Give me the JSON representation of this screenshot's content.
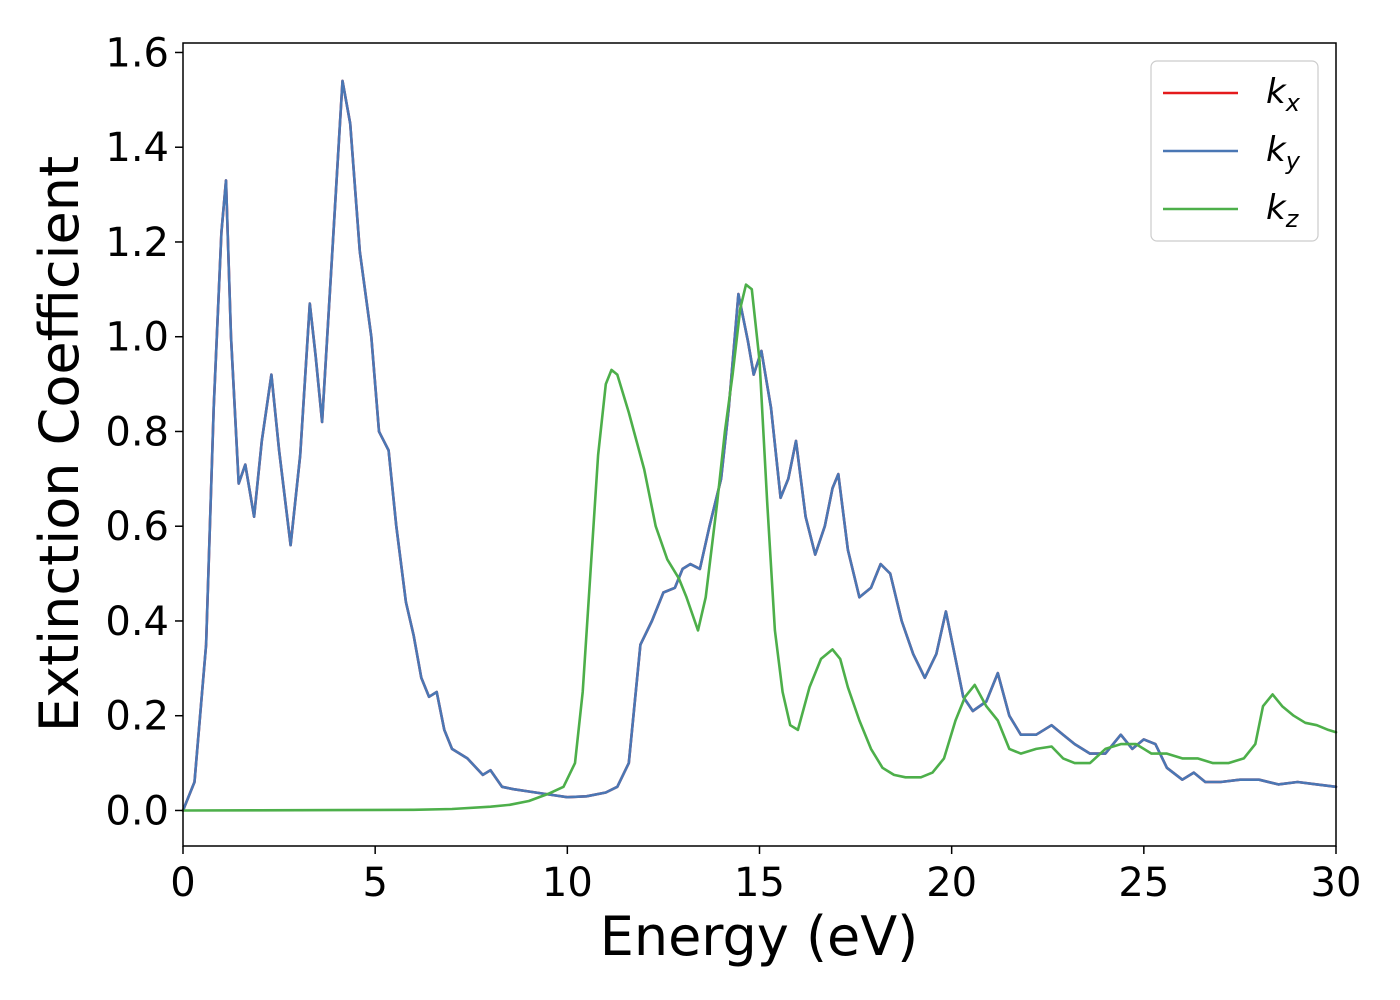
{
  "chart_data": {
    "type": "line",
    "title": "",
    "xlabel": "Energy (eV)",
    "ylabel": "Extinction Coefficient",
    "xlim": [
      0,
      30
    ],
    "ylim": [
      -0.075,
      1.62
    ],
    "xticks": [
      0,
      5,
      10,
      15,
      20,
      25,
      30
    ],
    "yticks": [
      0.0,
      0.2,
      0.4,
      0.6,
      0.8,
      1.0,
      1.2,
      1.4,
      1.6
    ],
    "xtick_labels": [
      "0",
      "5",
      "10",
      "15",
      "20",
      "25",
      "30"
    ],
    "ytick_labels": [
      "0.0",
      "0.2",
      "0.4",
      "0.6",
      "0.8",
      "1.0",
      "1.2",
      "1.4",
      "1.6"
    ],
    "grid": false,
    "legend_position": "top-right",
    "series": [
      {
        "name": "k",
        "subscript": "x",
        "color": "#e41a1c",
        "x": [
          0,
          0.3,
          0.6,
          0.8,
          1.0,
          1.12,
          1.25,
          1.45,
          1.62,
          1.85,
          2.05,
          2.3,
          2.5,
          2.8,
          3.05,
          3.3,
          3.45,
          3.62,
          3.9,
          4.15,
          4.35,
          4.6,
          4.9,
          5.1,
          5.35,
          5.55,
          5.8,
          6.0,
          6.2,
          6.4,
          6.6,
          6.8,
          7.0,
          7.4,
          7.8,
          8.0,
          8.3,
          8.6,
          9.0,
          9.5,
          10.0,
          10.5,
          11.0,
          11.3,
          11.6,
          11.9,
          12.2,
          12.5,
          12.8,
          13.0,
          13.2,
          13.45,
          13.7,
          14.0,
          14.2,
          14.45,
          14.7,
          14.85,
          15.05,
          15.3,
          15.55,
          15.75,
          15.95,
          16.2,
          16.45,
          16.7,
          16.9,
          17.05,
          17.3,
          17.6,
          17.9,
          18.15,
          18.4,
          18.7,
          19.0,
          19.3,
          19.6,
          19.85,
          20.05,
          20.3,
          20.55,
          20.9,
          21.2,
          21.5,
          21.8,
          22.2,
          22.6,
          22.9,
          23.2,
          23.6,
          24.0,
          24.4,
          24.7,
          25.0,
          25.3,
          25.6,
          26.0,
          26.3,
          26.6,
          27.0,
          27.5,
          28.0,
          28.5,
          29.0,
          29.5,
          30.0
        ],
        "y": [
          0.0,
          0.06,
          0.35,
          0.85,
          1.22,
          1.33,
          1.0,
          0.69,
          0.73,
          0.62,
          0.78,
          0.92,
          0.76,
          0.56,
          0.75,
          1.07,
          0.96,
          0.82,
          1.2,
          1.54,
          1.45,
          1.18,
          1.0,
          0.8,
          0.76,
          0.6,
          0.44,
          0.37,
          0.28,
          0.24,
          0.25,
          0.17,
          0.13,
          0.11,
          0.075,
          0.085,
          0.05,
          0.045,
          0.04,
          0.034,
          0.028,
          0.03,
          0.038,
          0.05,
          0.1,
          0.35,
          0.4,
          0.46,
          0.47,
          0.51,
          0.52,
          0.51,
          0.6,
          0.7,
          0.85,
          1.09,
          0.99,
          0.92,
          0.97,
          0.85,
          0.66,
          0.7,
          0.78,
          0.62,
          0.54,
          0.6,
          0.68,
          0.71,
          0.55,
          0.45,
          0.47,
          0.52,
          0.5,
          0.4,
          0.33,
          0.28,
          0.33,
          0.42,
          0.34,
          0.24,
          0.21,
          0.23,
          0.29,
          0.2,
          0.16,
          0.16,
          0.18,
          0.16,
          0.14,
          0.12,
          0.12,
          0.16,
          0.13,
          0.15,
          0.14,
          0.09,
          0.065,
          0.08,
          0.06,
          0.06,
          0.065,
          0.065,
          0.055,
          0.06,
          0.055,
          0.05
        ]
      },
      {
        "name": "k",
        "subscript": "y",
        "color": "#4a77b4",
        "x": [
          0,
          0.3,
          0.6,
          0.8,
          1.0,
          1.12,
          1.25,
          1.45,
          1.62,
          1.85,
          2.05,
          2.3,
          2.5,
          2.8,
          3.05,
          3.3,
          3.45,
          3.62,
          3.9,
          4.15,
          4.35,
          4.6,
          4.9,
          5.1,
          5.35,
          5.55,
          5.8,
          6.0,
          6.2,
          6.4,
          6.6,
          6.8,
          7.0,
          7.4,
          7.8,
          8.0,
          8.3,
          8.6,
          9.0,
          9.5,
          10.0,
          10.5,
          11.0,
          11.3,
          11.6,
          11.9,
          12.2,
          12.5,
          12.8,
          13.0,
          13.2,
          13.45,
          13.7,
          14.0,
          14.2,
          14.45,
          14.7,
          14.85,
          15.05,
          15.3,
          15.55,
          15.75,
          15.95,
          16.2,
          16.45,
          16.7,
          16.9,
          17.05,
          17.3,
          17.6,
          17.9,
          18.15,
          18.4,
          18.7,
          19.0,
          19.3,
          19.6,
          19.85,
          20.05,
          20.3,
          20.55,
          20.9,
          21.2,
          21.5,
          21.8,
          22.2,
          22.6,
          22.9,
          23.2,
          23.6,
          24.0,
          24.4,
          24.7,
          25.0,
          25.3,
          25.6,
          26.0,
          26.3,
          26.6,
          27.0,
          27.5,
          28.0,
          28.5,
          29.0,
          29.5,
          30.0
        ],
        "y": [
          0.0,
          0.06,
          0.35,
          0.85,
          1.22,
          1.33,
          1.0,
          0.69,
          0.73,
          0.62,
          0.78,
          0.92,
          0.76,
          0.56,
          0.75,
          1.07,
          0.96,
          0.82,
          1.2,
          1.54,
          1.45,
          1.18,
          1.0,
          0.8,
          0.76,
          0.6,
          0.44,
          0.37,
          0.28,
          0.24,
          0.25,
          0.17,
          0.13,
          0.11,
          0.075,
          0.085,
          0.05,
          0.045,
          0.04,
          0.034,
          0.028,
          0.03,
          0.038,
          0.05,
          0.1,
          0.35,
          0.4,
          0.46,
          0.47,
          0.51,
          0.52,
          0.51,
          0.6,
          0.7,
          0.85,
          1.09,
          0.99,
          0.92,
          0.97,
          0.85,
          0.66,
          0.7,
          0.78,
          0.62,
          0.54,
          0.6,
          0.68,
          0.71,
          0.55,
          0.45,
          0.47,
          0.52,
          0.5,
          0.4,
          0.33,
          0.28,
          0.33,
          0.42,
          0.34,
          0.24,
          0.21,
          0.23,
          0.29,
          0.2,
          0.16,
          0.16,
          0.18,
          0.16,
          0.14,
          0.12,
          0.12,
          0.16,
          0.13,
          0.15,
          0.14,
          0.09,
          0.065,
          0.08,
          0.06,
          0.06,
          0.065,
          0.065,
          0.055,
          0.06,
          0.055,
          0.05
        ]
      },
      {
        "name": "k",
        "subscript": "z",
        "color": "#4daf4a",
        "x": [
          0,
          2,
          4,
          6,
          7,
          8,
          8.5,
          9.0,
          9.5,
          9.9,
          10.2,
          10.4,
          10.6,
          10.8,
          11.0,
          11.15,
          11.3,
          11.6,
          12.0,
          12.3,
          12.6,
          12.9,
          13.1,
          13.4,
          13.6,
          13.9,
          14.1,
          14.3,
          14.5,
          14.65,
          14.8,
          15.0,
          15.2,
          15.4,
          15.6,
          15.8,
          16.0,
          16.3,
          16.6,
          16.9,
          17.1,
          17.3,
          17.6,
          17.9,
          18.2,
          18.5,
          18.8,
          19.2,
          19.5,
          19.8,
          20.1,
          20.35,
          20.6,
          20.9,
          21.2,
          21.5,
          21.8,
          22.2,
          22.6,
          22.9,
          23.2,
          23.6,
          24.0,
          24.4,
          24.8,
          25.2,
          25.6,
          26.0,
          26.4,
          26.8,
          27.2,
          27.6,
          27.9,
          28.1,
          28.35,
          28.6,
          28.9,
          29.2,
          29.5,
          29.8,
          30.0
        ],
        "y": [
          0.0,
          0.0003,
          0.0008,
          0.0015,
          0.003,
          0.008,
          0.012,
          0.02,
          0.035,
          0.05,
          0.1,
          0.25,
          0.5,
          0.75,
          0.9,
          0.93,
          0.92,
          0.84,
          0.72,
          0.6,
          0.53,
          0.49,
          0.45,
          0.38,
          0.45,
          0.65,
          0.8,
          0.92,
          1.06,
          1.11,
          1.1,
          0.95,
          0.65,
          0.38,
          0.25,
          0.18,
          0.17,
          0.26,
          0.32,
          0.34,
          0.32,
          0.26,
          0.19,
          0.13,
          0.09,
          0.075,
          0.07,
          0.07,
          0.08,
          0.11,
          0.19,
          0.24,
          0.265,
          0.22,
          0.19,
          0.13,
          0.12,
          0.13,
          0.135,
          0.11,
          0.1,
          0.1,
          0.13,
          0.14,
          0.14,
          0.12,
          0.12,
          0.11,
          0.11,
          0.1,
          0.1,
          0.11,
          0.14,
          0.22,
          0.245,
          0.22,
          0.2,
          0.185,
          0.18,
          0.17,
          0.165
        ]
      }
    ]
  }
}
